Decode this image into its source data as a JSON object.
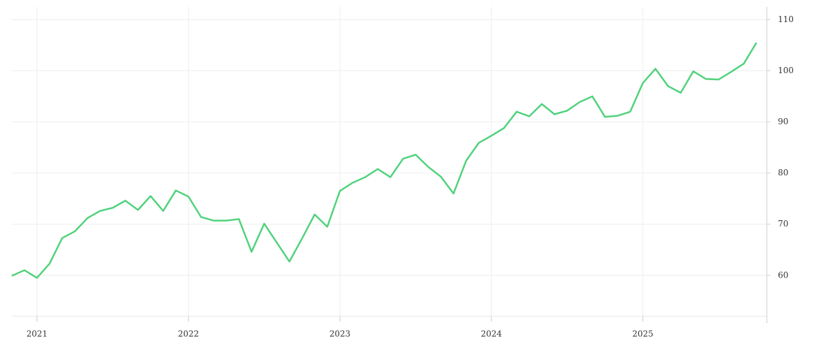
{
  "chart_data": {
    "type": "line",
    "categories": [
      null,
      null,
      "2021",
      null,
      null,
      null,
      null,
      null,
      null,
      null,
      null,
      null,
      null,
      null,
      "2022",
      null,
      null,
      null,
      null,
      null,
      null,
      null,
      null,
      null,
      null,
      null,
      "2023",
      null,
      null,
      null,
      null,
      null,
      null,
      null,
      null,
      null,
      null,
      null,
      "2024",
      null,
      null,
      null,
      null,
      null,
      null,
      null,
      null,
      null,
      null,
      null,
      "2025",
      null,
      null,
      null,
      null,
      null,
      null,
      null,
      null,
      null
    ],
    "series": [
      {
        "color": "#50d27c",
        "values": [
          59.9,
          61.0,
          59.5,
          62.3,
          67.3,
          68.6,
          71.2,
          72.6,
          73.2,
          74.6,
          72.8,
          75.5,
          72.6,
          76.6,
          75.4,
          71.4,
          70.7,
          70.7,
          71.0,
          64.6,
          70.1,
          66.4,
          62.7,
          67.2,
          71.9,
          69.5,
          76.5,
          78.1,
          79.2,
          80.8,
          79.2,
          82.8,
          83.6,
          81.2,
          79.3,
          76.0,
          82.4,
          85.9,
          87.3,
          88.8,
          92.0,
          91.1,
          93.5,
          91.5,
          92.2,
          93.9,
          95.0,
          91.0,
          91.2,
          92.0,
          97.6,
          100.4,
          97.0,
          95.7,
          99.9,
          98.4,
          98.3,
          99.8,
          101.4,
          105.5
        ]
      }
    ],
    "ylim": [
      52,
      112.5
    ],
    "yticks": [
      60,
      70,
      80,
      90,
      100,
      110
    ],
    "grid": true
  }
}
